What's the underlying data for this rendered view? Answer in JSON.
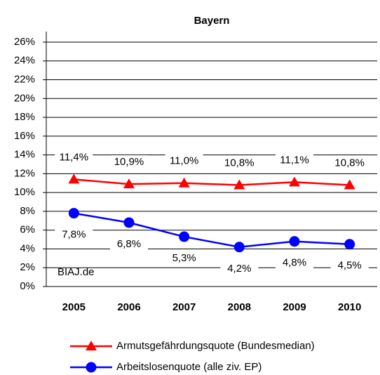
{
  "chart_data": {
    "type": "line",
    "title": "Bayern",
    "categories": [
      "2005",
      "2006",
      "2007",
      "2008",
      "2009",
      "2010"
    ],
    "series": [
      {
        "name": "Armutsgefährdungsquote (Bundesmedian)",
        "color": "#ff0000",
        "marker": "triangle",
        "values": [
          11.4,
          10.9,
          11.0,
          10.8,
          11.1,
          10.8
        ],
        "value_labels": [
          "11,4%",
          "10,9%",
          "11,0%",
          "10,8%",
          "11,1%",
          "10,8%"
        ]
      },
      {
        "name": "Arbeitslosenquote (alle ziv. EP)",
        "color": "#0000ff",
        "marker": "circle",
        "values": [
          7.8,
          6.8,
          5.3,
          4.2,
          4.8,
          4.5
        ],
        "value_labels": [
          "7,8%",
          "6,8%",
          "5,3%",
          "4,2%",
          "4,8%",
          "4,5%"
        ]
      }
    ],
    "ylim": [
      0,
      26
    ],
    "yticks": [
      {
        "value": 0,
        "label": "0%"
      },
      {
        "value": 2,
        "label": "2%"
      },
      {
        "value": 4,
        "label": "4%"
      },
      {
        "value": 6,
        "label": "6%"
      },
      {
        "value": 8,
        "label": "8%"
      },
      {
        "value": 10,
        "label": "10%"
      },
      {
        "value": 12,
        "label": "12%"
      },
      {
        "value": 14,
        "label": "14%"
      },
      {
        "value": 16,
        "label": "16%"
      },
      {
        "value": 18,
        "label": "18%"
      },
      {
        "value": 20,
        "label": "20%"
      },
      {
        "value": 22,
        "label": "22%"
      },
      {
        "value": 24,
        "label": "24%"
      },
      {
        "value": 26,
        "label": "26%"
      }
    ],
    "grid": true,
    "annotation": "BIAJ.de",
    "legend": "bottom"
  }
}
